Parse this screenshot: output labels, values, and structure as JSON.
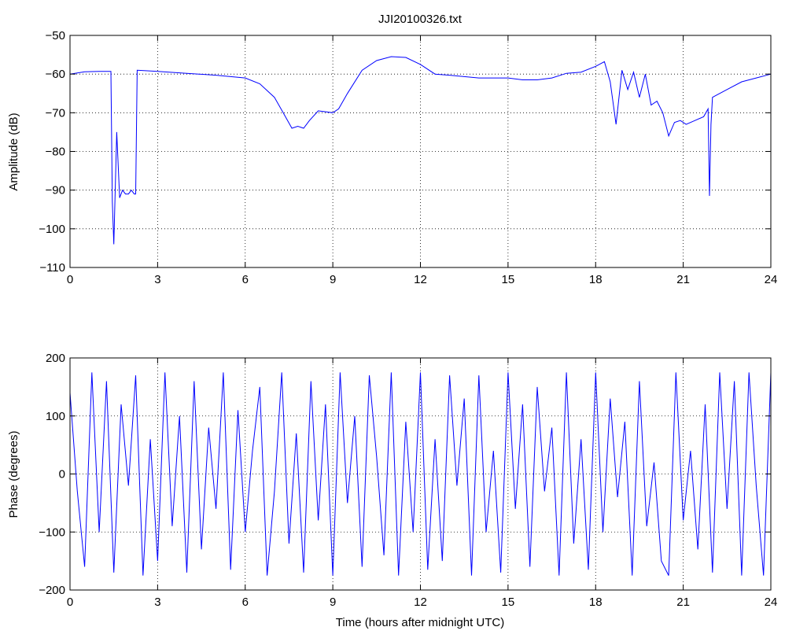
{
  "title": "JJI20100326.txt",
  "colors": {
    "line": "#0000ff",
    "axes": "#000000",
    "background": "#ffffff"
  },
  "chart_data": [
    {
      "type": "line",
      "title": "JJI20100326.txt",
      "xlabel": "",
      "ylabel": "Amplitude (dB)",
      "xlim": [
        0,
        24
      ],
      "ylim": [
        -110,
        -50
      ],
      "xticks": [
        "0",
        "3",
        "6",
        "9",
        "12",
        "15",
        "18",
        "21",
        "24"
      ],
      "yticks": [
        "-110",
        "-100",
        "-90",
        "-80",
        "-70",
        "-60",
        "-50"
      ],
      "grid": true,
      "series": [
        {
          "x": [
            0,
            0.5,
            1.0,
            1.4,
            1.45,
            1.5,
            1.6,
            1.7,
            1.8,
            1.9,
            2.0,
            2.1,
            2.2,
            2.25,
            2.3,
            3,
            4,
            5,
            6,
            6.5,
            7.0,
            7.3,
            7.6,
            7.8,
            8.0,
            8.2,
            8.5,
            9.0,
            9.2,
            9.5,
            10.0,
            10.5,
            11.0,
            11.5,
            12.0,
            12.5,
            13.0,
            14.0,
            15.0,
            15.5,
            16.0,
            16.5,
            17.0,
            17.5,
            18.0,
            18.3,
            18.5,
            18.7,
            18.9,
            19.1,
            19.3,
            19.5,
            19.7,
            19.9,
            20.1,
            20.3,
            20.5,
            20.7,
            20.9,
            21.1,
            21.4,
            21.7,
            21.85,
            21.9,
            21.95,
            22.0,
            22.5,
            23.0,
            23.5,
            24.0
          ],
          "values": [
            -60,
            -59.4,
            -59.3,
            -59.3,
            -93,
            -104,
            -75,
            -92,
            -90,
            -91,
            -91,
            -90,
            -91,
            -91,
            -59,
            -59.3,
            -59.8,
            -60.3,
            -61,
            -62.5,
            -66,
            -70,
            -74,
            -73.5,
            -74,
            -72,
            -69.5,
            -70,
            -69,
            -65,
            -59,
            -56.5,
            -55.5,
            -55.7,
            -57.5,
            -60,
            -60.3,
            -61,
            -61,
            -61.5,
            -61.5,
            -61,
            -59.8,
            -59.5,
            -58,
            -56.8,
            -62,
            -73,
            -59,
            -64,
            -59.5,
            -66,
            -60,
            -68,
            -67,
            -70,
            -76,
            -72.5,
            -72,
            -73,
            -72,
            -71,
            -69,
            -91.5,
            -73,
            -66,
            -64,
            -62,
            -61,
            -60
          ]
        }
      ]
    },
    {
      "type": "line",
      "title": "",
      "xlabel": "Time (hours after midnight UTC)",
      "ylabel": "Phase (degrees)",
      "xlim": [
        0,
        24
      ],
      "ylim": [
        -200,
        200
      ],
      "xticks": [
        "0",
        "3",
        "6",
        "9",
        "12",
        "15",
        "18",
        "21",
        "24"
      ],
      "yticks": [
        "-200",
        "-100",
        "0",
        "100",
        "200"
      ],
      "grid": true,
      "series": [
        {
          "x": [
            0,
            0.25,
            0.5,
            0.75,
            1.0,
            1.25,
            1.5,
            1.75,
            2.0,
            2.25,
            2.5,
            2.75,
            3.0,
            3.25,
            3.5,
            3.75,
            4.0,
            4.25,
            4.5,
            4.75,
            5.0,
            5.25,
            5.5,
            5.75,
            6.0,
            6.25,
            6.5,
            6.75,
            7.0,
            7.25,
            7.5,
            7.75,
            8.0,
            8.25,
            8.5,
            8.75,
            9.0,
            9.25,
            9.5,
            9.75,
            10.0,
            10.25,
            10.5,
            10.75,
            11.0,
            11.25,
            11.5,
            11.75,
            12.0,
            12.25,
            12.5,
            12.75,
            13.0,
            13.25,
            13.5,
            13.75,
            14.0,
            14.25,
            14.5,
            14.75,
            15.0,
            15.25,
            15.5,
            15.75,
            16.0,
            16.25,
            16.5,
            16.75,
            17.0,
            17.25,
            17.5,
            17.75,
            18.0,
            18.25,
            18.5,
            18.75,
            19.0,
            19.25,
            19.5,
            19.75,
            20.0,
            20.25,
            20.5,
            20.75,
            21.0,
            21.25,
            21.5,
            21.75,
            22.0,
            22.25,
            22.5,
            22.75,
            23.0,
            23.25,
            23.5,
            23.75,
            24.0
          ],
          "values": [
            140,
            -30,
            -160,
            175,
            -100,
            160,
            -170,
            120,
            -20,
            170,
            -175,
            60,
            -150,
            175,
            -90,
            100,
            -170,
            160,
            -130,
            80,
            -60,
            175,
            -165,
            110,
            -100,
            40,
            150,
            -175,
            -30,
            175,
            -120,
            70,
            -170,
            160,
            -80,
            120,
            -175,
            175,
            -50,
            100,
            -160,
            170,
            30,
            -140,
            175,
            -175,
            90,
            -100,
            175,
            -165,
            60,
            -150,
            170,
            -20,
            130,
            -175,
            170,
            -100,
            40,
            -170,
            175,
            -60,
            120,
            -160,
            150,
            -30,
            80,
            -175,
            175,
            -120,
            60,
            -165,
            175,
            -100,
            130,
            -40,
            90,
            -175,
            160,
            -90,
            20,
            -150,
            -175,
            175,
            -80,
            40,
            -130,
            120,
            -170,
            175,
            -60,
            160,
            -175,
            175,
            -20,
            -175,
            175
          ]
        }
      ]
    }
  ]
}
